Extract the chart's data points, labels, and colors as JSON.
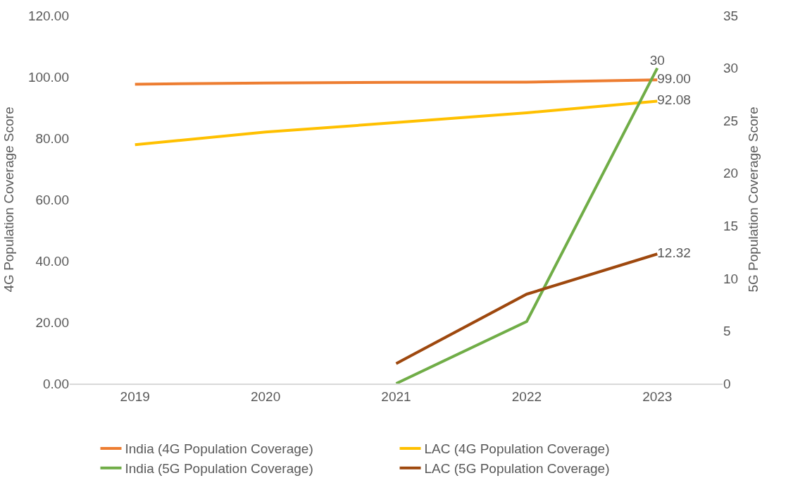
{
  "chart_data": {
    "type": "line",
    "ylabel": "4G Population Coverage Score",
    "y2label": "5G Population Coverage Score",
    "categories": [
      "2019",
      "2020",
      "2021",
      "2022",
      "2023"
    ],
    "series": [
      {
        "name": "India (4G Population Coverage)",
        "color": "#ed7d31",
        "values": [
          97.6,
          98.0,
          98.2,
          98.3,
          99.0
        ],
        "value_labels": [
          null,
          null,
          null,
          null,
          "99.00"
        ]
      },
      {
        "name": "LAC (4G Population Coverage)",
        "color": "#ffc000",
        "values": [
          77.9,
          82.0,
          85.1,
          88.3,
          92.08
        ],
        "value_labels": [
          null,
          null,
          null,
          null,
          "92.08"
        ]
      },
      {
        "name": "India (5G Population Coverage)",
        "color": "#70ad47",
        "axis": "y2",
        "values": [
          null,
          null,
          0,
          5.9,
          30
        ],
        "value_labels": [
          null,
          null,
          null,
          null,
          "30"
        ]
      },
      {
        "name": "LAC (5G Population Coverage)",
        "color": "#9e480e",
        "axis": "y2",
        "values": [
          null,
          null,
          1.9,
          8.5,
          12.32
        ],
        "value_labels": [
          null,
          null,
          null,
          null,
          "12.32"
        ]
      }
    ],
    "ylim": [
      0,
      120
    ],
    "yticks": [
      {
        "value": 0,
        "label": "0.00"
      },
      {
        "value": 20,
        "label": "20.00"
      },
      {
        "value": 40,
        "label": "40.00"
      },
      {
        "value": 60,
        "label": "60.00"
      },
      {
        "value": 80,
        "label": "80.00"
      },
      {
        "value": 100,
        "label": "100.00"
      },
      {
        "value": 120,
        "label": "120.00"
      }
    ],
    "y2lim": [
      0,
      35
    ],
    "y2ticks": [
      0,
      5,
      10,
      15,
      20,
      25,
      30,
      35
    ],
    "legend": "bottom",
    "marker": "none",
    "line_style": "solid"
  }
}
